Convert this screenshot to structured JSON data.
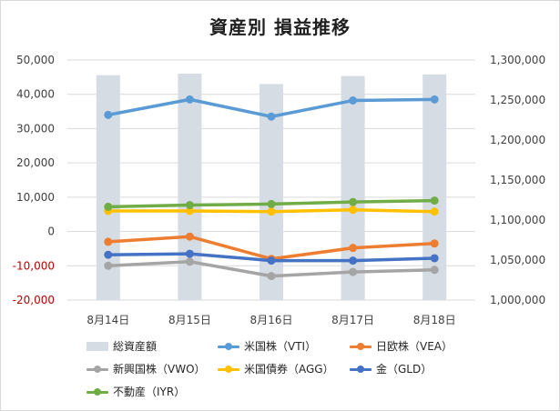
{
  "chart_data": {
    "type": "bar+line",
    "title": "資産別 損益推移",
    "categories": [
      "8月14日",
      "8月15日",
      "8月16日",
      "8月17日",
      "8月18日"
    ],
    "y_left": {
      "ylim": [
        -20000,
        50000
      ],
      "ticks": [
        "50,000",
        "40,000",
        "30,000",
        "20,000",
        "10,000",
        "0",
        "-10,000",
        "-20,000"
      ],
      "tick_values": [
        50000,
        40000,
        30000,
        20000,
        10000,
        0,
        -10000,
        -20000
      ],
      "negative_color": "#c00000"
    },
    "y_right": {
      "ylim": [
        1000000,
        1300000
      ],
      "ticks": [
        "1,300,000",
        "1,250,000",
        "1,200,000",
        "1,150,000",
        "1,100,000",
        "1,050,000",
        "1,000,000"
      ],
      "tick_values": [
        1300000,
        1250000,
        1200000,
        1150000,
        1100000,
        1050000,
        1000000
      ]
    },
    "bars": {
      "name": "総資産額",
      "axis": "right",
      "color": "#d6dce4",
      "values": [
        1281000,
        1283000,
        1270000,
        1280000,
        1282000
      ]
    },
    "series": [
      {
        "name": "米国株（VTI）",
        "color": "#5b9bd5",
        "values": [
          34000,
          38500,
          33500,
          38200,
          38500
        ]
      },
      {
        "name": "日欧株（VEA）",
        "color": "#ed7d31",
        "values": [
          -3000,
          -1500,
          -8000,
          -4800,
          -3500
        ]
      },
      {
        "name": "新興国株（VWO）",
        "color": "#a5a5a5",
        "values": [
          -10000,
          -8800,
          -13000,
          -11800,
          -11200
        ]
      },
      {
        "name": "米国債券（AGG）",
        "color": "#ffc000",
        "values": [
          6000,
          6000,
          5800,
          6300,
          5800
        ]
      },
      {
        "name": "金（GLD）",
        "color": "#4472c4",
        "values": [
          -6800,
          -6500,
          -8500,
          -8500,
          -7800
        ]
      },
      {
        "name": "不動産（IYR）",
        "color": "#70ad47",
        "values": [
          7200,
          7700,
          8000,
          8600,
          9000
        ]
      }
    ],
    "grid": true,
    "legend_position": "bottom"
  }
}
